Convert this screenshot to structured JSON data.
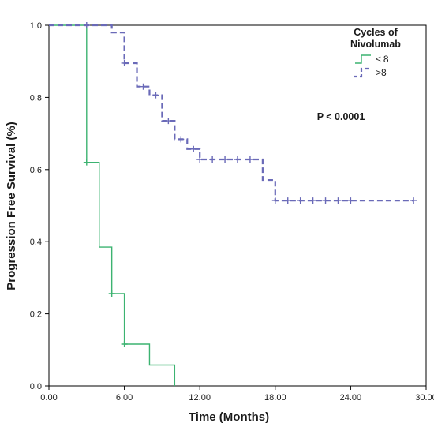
{
  "chart_data": {
    "type": "line",
    "subtype": "kaplan-meier step",
    "title": "",
    "xlabel": "Time (Months)",
    "ylabel": "Progression Free Survival (%)",
    "xlim": [
      0,
      30
    ],
    "ylim": [
      0,
      1.0
    ],
    "x_ticks": [
      0,
      6,
      12,
      18,
      24,
      30
    ],
    "x_tick_labels": [
      "0.00",
      "6.00",
      "12.00",
      "18.00",
      "24.00",
      "30.00"
    ],
    "y_ticks": [
      0,
      0.2,
      0.4,
      0.6,
      0.8,
      1.0
    ],
    "y_tick_labels": [
      "0.0",
      "0.2",
      "0.4",
      "0.6",
      "0.8",
      "1.0"
    ],
    "grid": false,
    "legend": {
      "title": "Cycles of Nivolumab",
      "title_lines": [
        "Cycles of",
        "Nivolumab"
      ],
      "placement": "top-right"
    },
    "annotation": "P < 0.0001",
    "series": [
      {
        "name": "≤ 8",
        "color": "#3cb371",
        "line_style": "solid",
        "steps": [
          [
            0,
            1.0
          ],
          [
            3,
            0.62
          ],
          [
            4,
            0.385
          ],
          [
            5,
            0.256
          ],
          [
            6,
            0.116
          ],
          [
            8,
            0.058
          ],
          [
            10,
            0.0
          ]
        ],
        "censored": [
          [
            3,
            0.62
          ],
          [
            5,
            0.256
          ],
          [
            6,
            0.116
          ]
        ]
      },
      {
        "name": ">8",
        "color": "#6a6ab8",
        "line_style": "dashed",
        "steps": [
          [
            0,
            1.0
          ],
          [
            5,
            0.98
          ],
          [
            6,
            0.895
          ],
          [
            7,
            0.83
          ],
          [
            8,
            0.806
          ],
          [
            9,
            0.735
          ],
          [
            10,
            0.684
          ],
          [
            11,
            0.657
          ],
          [
            12,
            0.628
          ],
          [
            17,
            0.571
          ],
          [
            18,
            0.514
          ]
        ],
        "end_x": 29,
        "censored": [
          [
            3,
            1.0
          ],
          [
            6,
            0.895
          ],
          [
            7.5,
            0.83
          ],
          [
            8.5,
            0.806
          ],
          [
            9.5,
            0.735
          ],
          [
            10.5,
            0.684
          ],
          [
            11.5,
            0.657
          ],
          [
            12,
            0.628
          ],
          [
            13,
            0.628
          ],
          [
            14,
            0.628
          ],
          [
            15,
            0.628
          ],
          [
            16,
            0.628
          ],
          [
            18,
            0.514
          ],
          [
            19,
            0.514
          ],
          [
            20,
            0.514
          ],
          [
            21,
            0.514
          ],
          [
            22,
            0.514
          ],
          [
            23,
            0.514
          ],
          [
            24,
            0.514
          ],
          [
            29,
            0.514
          ]
        ]
      }
    ]
  }
}
